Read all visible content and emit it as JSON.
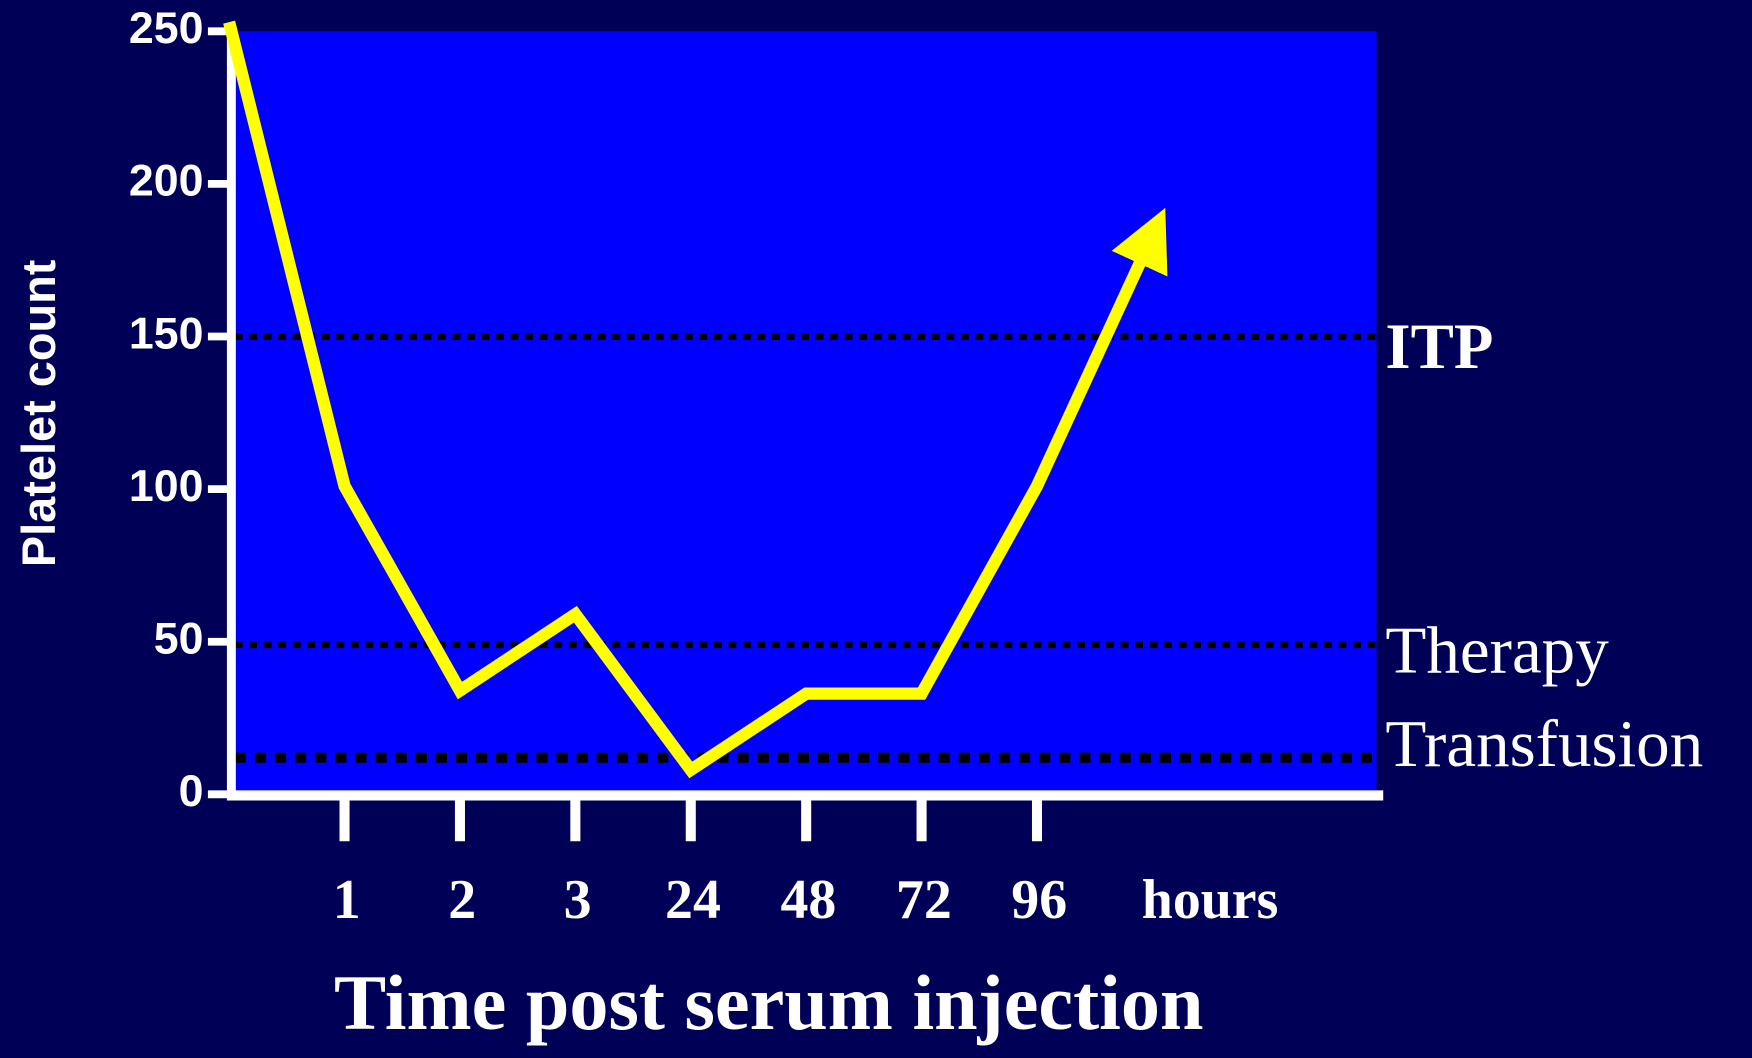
{
  "chart_data": {
    "type": "line",
    "x_label": "Time post serum injection",
    "x_unit": "hours",
    "y_label": "Platelet count",
    "categories": [
      null,
      "1",
      "2",
      "3",
      "24",
      "48",
      "72",
      "96",
      null
    ],
    "series": [
      {
        "name": "Platelet count",
        "color": "#ffff00",
        "values": [
          253,
          101,
          34,
          59,
          8,
          33,
          33,
          101,
          183
        ]
      }
    ],
    "ylim": [
      0,
      250
    ],
    "yticks": [
      0,
      50,
      100,
      150,
      200,
      250
    ],
    "reference_lines": [
      {
        "label": "ITP",
        "value": 150
      },
      {
        "label": "Therapy",
        "value": 49
      },
      {
        "label": "Transfusion",
        "value": 12
      }
    ],
    "plot_color": "#0000ff",
    "background": "#000057"
  }
}
